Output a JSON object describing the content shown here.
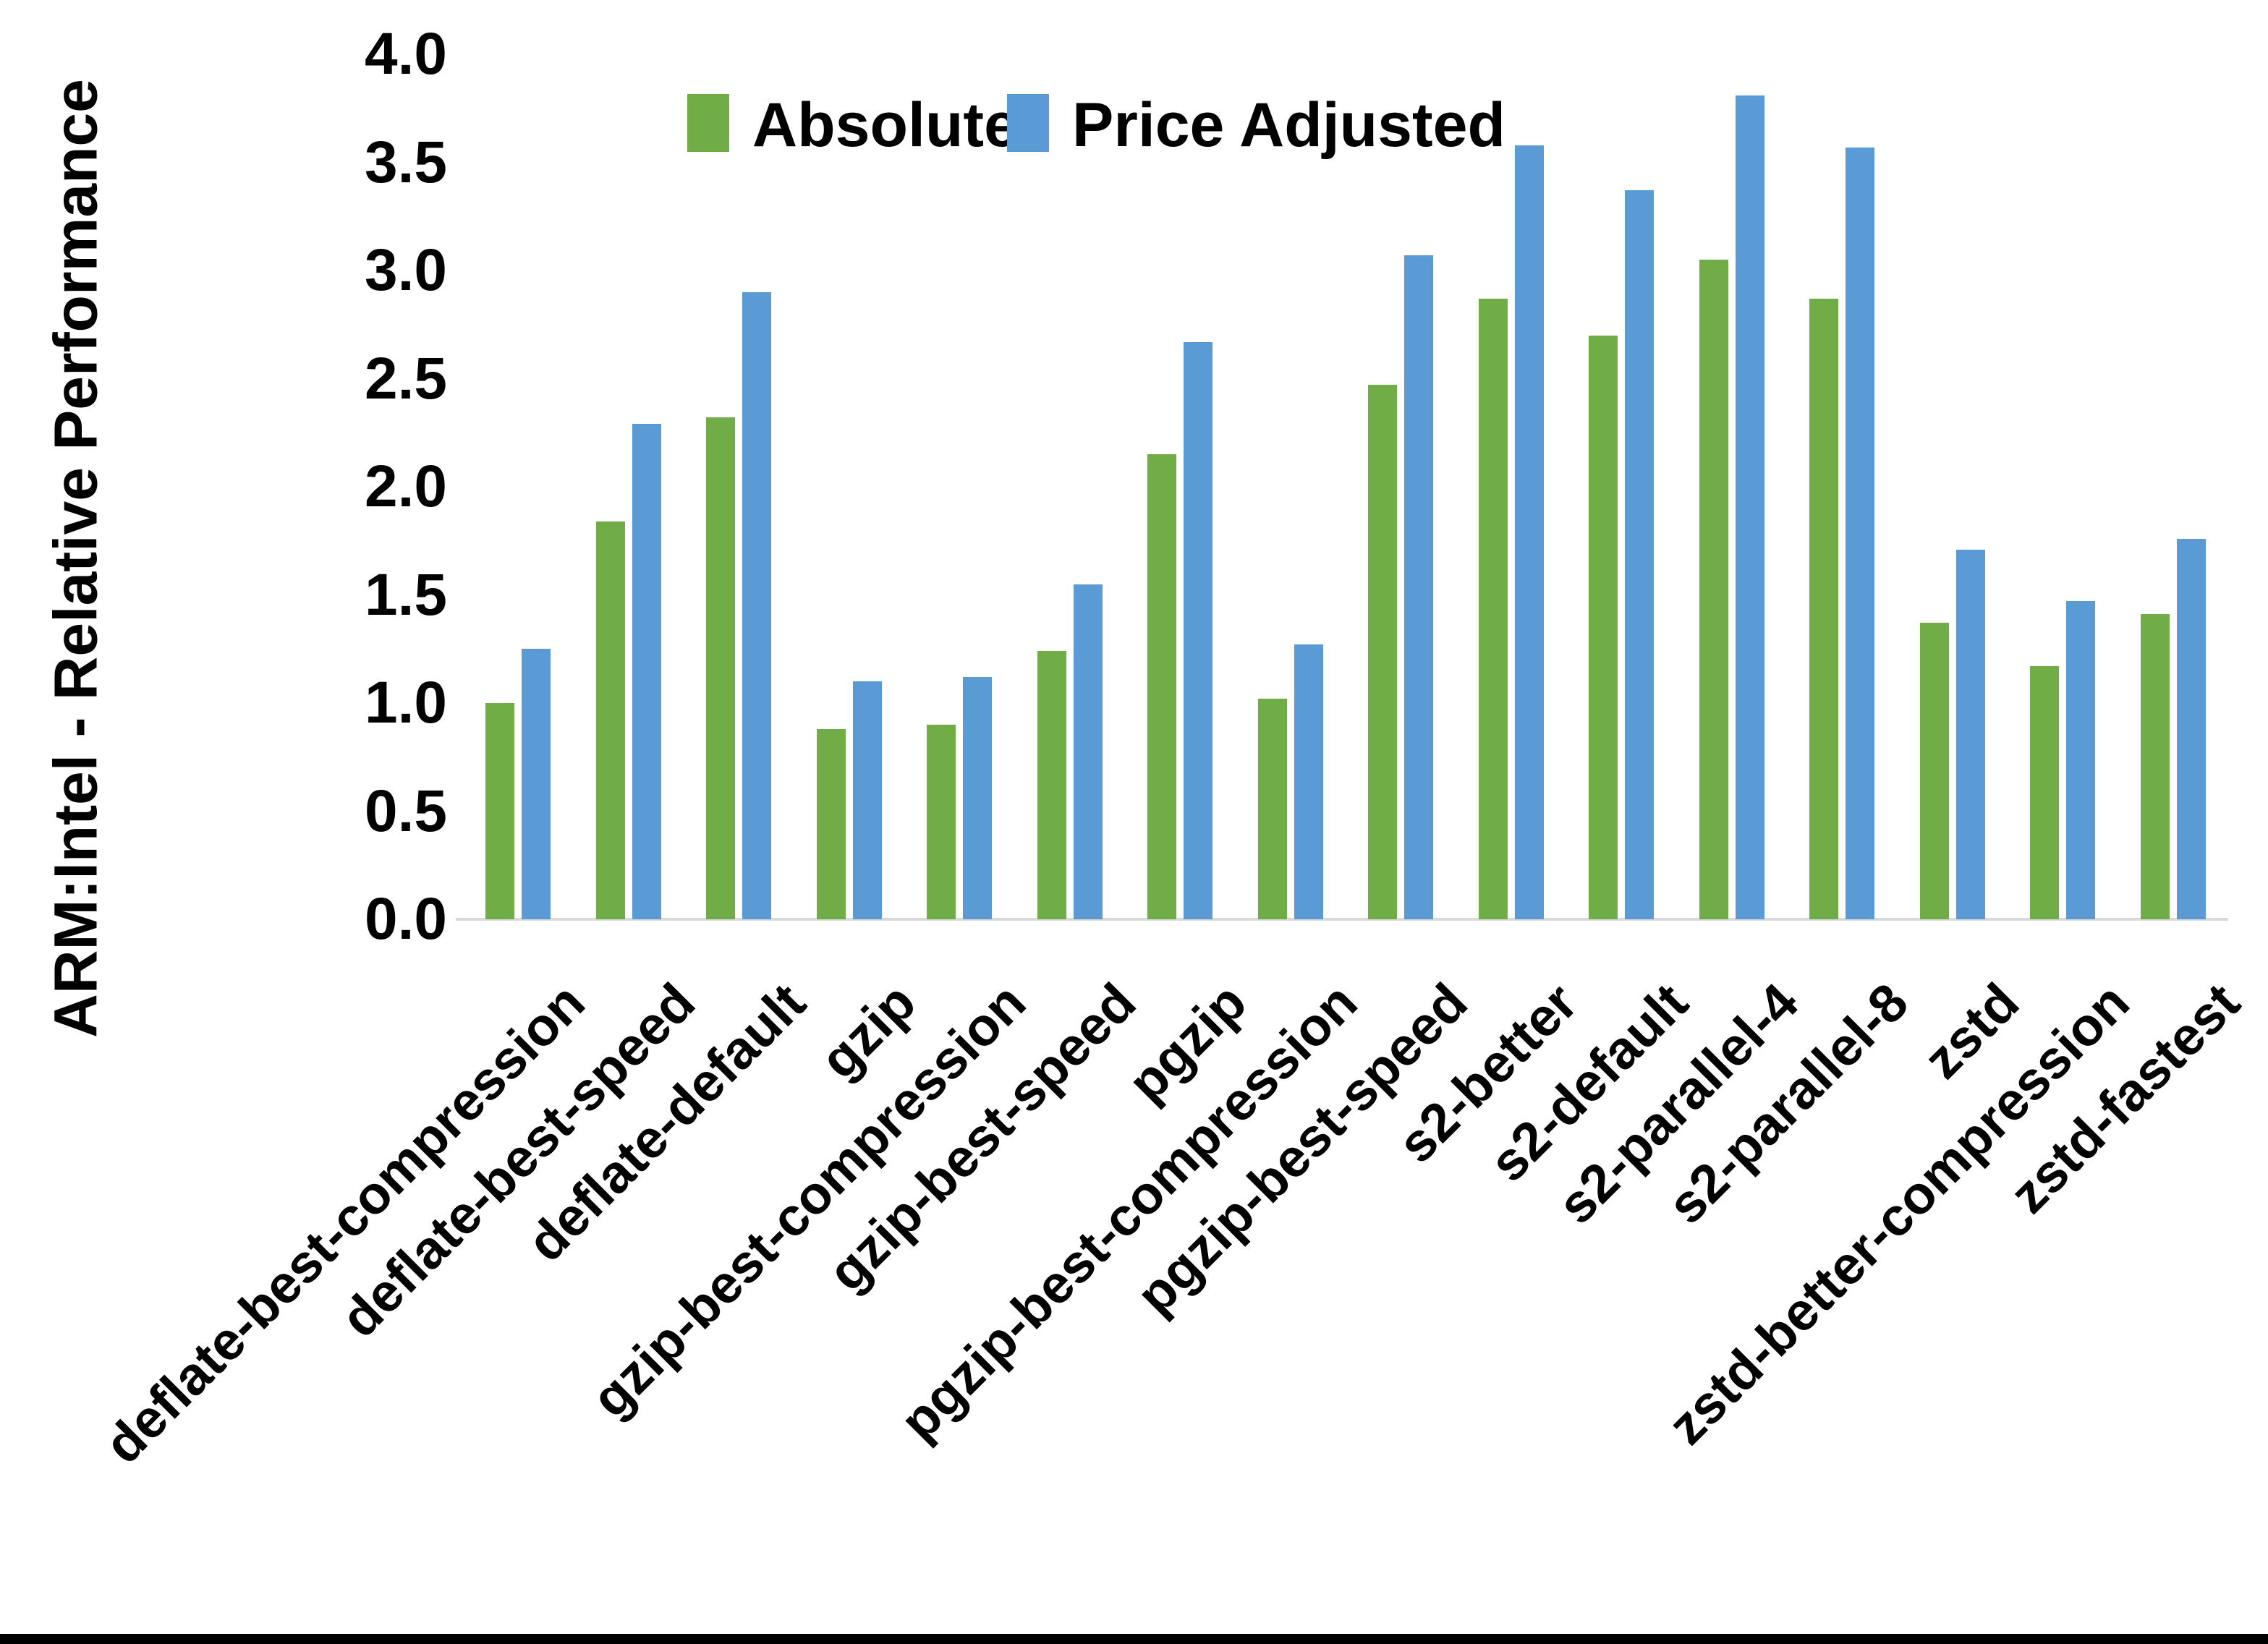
{
  "figure": {
    "y_axis_title": "ARM:Intel - Relative Performance"
  },
  "legend": {
    "items": [
      {
        "label": "Absolute",
        "color": "#70AD47"
      },
      {
        "label": "Price Adjusted",
        "color": "#5B9BD5"
      }
    ]
  },
  "colors": {
    "absolute_green": "#70AD47",
    "price_adjusted_blue": "#5B9BD5",
    "axis_line": "#D9D9D9",
    "text": "#000000",
    "bottom_bar": "#000000"
  },
  "chart_data": {
    "type": "bar",
    "title": "",
    "xlabel": "",
    "ylabel": "ARM:Intel - Relative Performance",
    "ylim": [
      0.0,
      4.0
    ],
    "ytick_step": 0.5,
    "ytick_labels": [
      "0.0",
      "0.5",
      "1.0",
      "1.5",
      "2.0",
      "2.5",
      "3.0",
      "3.5",
      "4.0"
    ],
    "grid": false,
    "legend_position": "top",
    "categories": [
      "deflate-best-compression",
      "deflate-best-speed",
      "deflate-default",
      "gzip",
      "gzip-best-compression",
      "gzip-best-speed",
      "pgzip",
      "pgzip-best-compression",
      "pgzip-best-speed",
      "s2-better",
      "s2-default",
      "s2-parallel-4",
      "s2-parallel-8",
      "zstd",
      "zstd-better-compression",
      "zstd-fastest"
    ],
    "series": [
      {
        "name": "Absolute",
        "color": "#70AD47",
        "values": [
          1.0,
          1.84,
          2.32,
          0.88,
          0.9,
          1.24,
          2.15,
          1.02,
          2.47,
          2.87,
          2.7,
          3.05,
          2.87,
          1.37,
          1.17,
          1.41
        ]
      },
      {
        "name": "Price Adjusted",
        "color": "#5B9BD5",
        "values": [
          1.25,
          2.29,
          2.9,
          1.1,
          1.12,
          1.55,
          2.67,
          1.27,
          3.07,
          3.58,
          3.37,
          3.81,
          3.57,
          1.71,
          1.47,
          1.76
        ]
      }
    ]
  }
}
